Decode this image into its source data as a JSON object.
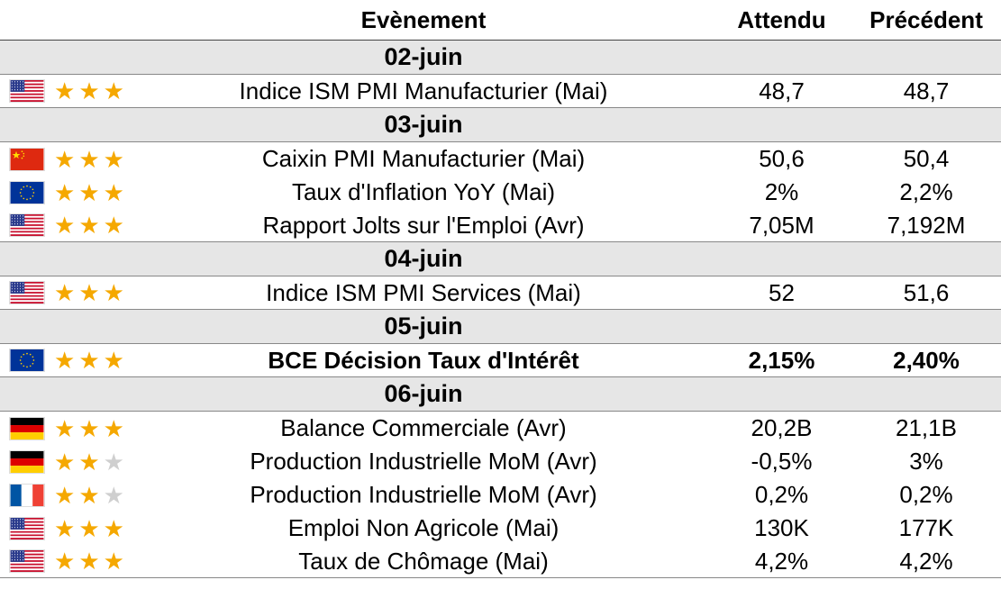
{
  "header": {
    "event": "Evènement",
    "expected": "Attendu",
    "previous": "Précédent"
  },
  "groups": [
    {
      "date": "02-juin",
      "events": [
        {
          "flag": "us-flag-icon",
          "stars": 3,
          "event": "Indice ISM PMI Manufacturier (Mai)",
          "expected": "48,7",
          "previous": "48,7"
        }
      ]
    },
    {
      "date": "03-juin",
      "events": [
        {
          "flag": "cn-flag-icon",
          "stars": 3,
          "event": "Caixin PMI Manufacturier (Mai)",
          "expected": "50,6",
          "previous": "50,4"
        },
        {
          "flag": "eu-flag-icon",
          "stars": 3,
          "event": "Taux d'Inflation YoY (Mai)",
          "expected": "2%",
          "previous": "2,2%"
        },
        {
          "flag": "us-flag-icon",
          "stars": 3,
          "event": "Rapport Jolts sur l'Emploi (Avr)",
          "expected": "7,05M",
          "previous": "7,192M"
        }
      ]
    },
    {
      "date": "04-juin",
      "events": [
        {
          "flag": "us-flag-icon",
          "stars": 3,
          "event": "Indice ISM PMI Services (Mai)",
          "expected": "52",
          "previous": "51,6"
        }
      ]
    },
    {
      "date": "05-juin",
      "events": [
        {
          "flag": "eu-flag-icon",
          "stars": 3,
          "event": "BCE Décision Taux d'Intérêt",
          "expected": "2,15%",
          "previous": "2,40%",
          "bold": true
        }
      ]
    },
    {
      "date": "06-juin",
      "events": [
        {
          "flag": "de-flag-icon",
          "stars": 3,
          "event": "Balance Commerciale (Avr)",
          "expected": "20,2B",
          "previous": "21,1B"
        },
        {
          "flag": "de-flag-icon",
          "stars": 2,
          "event": "Production Industrielle MoM (Avr)",
          "expected": "-0,5%",
          "previous": "3%"
        },
        {
          "flag": "fr-flag-icon",
          "stars": 2,
          "event": "Production Industrielle MoM (Avr)",
          "expected": "0,2%",
          "previous": "0,2%"
        },
        {
          "flag": "us-flag-icon",
          "stars": 3,
          "event": "Emploi Non Agricole (Mai)",
          "expected": "130K",
          "previous": "177K"
        },
        {
          "flag": "us-flag-icon",
          "stars": 3,
          "event": "Taux de Chômage (Mai)",
          "expected": "4,2%",
          "previous": "4,2%"
        }
      ]
    }
  ],
  "colors": {
    "star_on": "#f5a800",
    "star_off": "#cfcfcf",
    "date_row_bg": "#e6e6e6"
  }
}
